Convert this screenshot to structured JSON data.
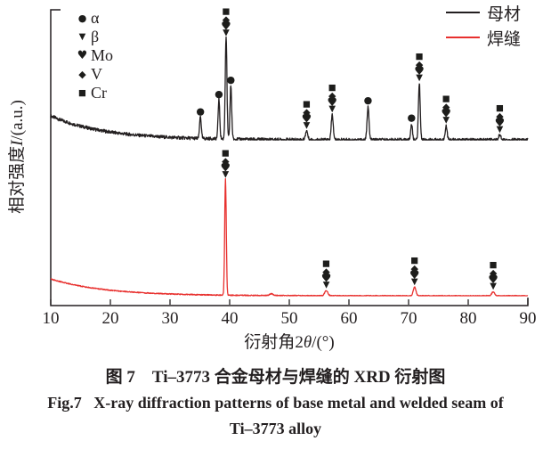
{
  "axes": {
    "xlabel": "衍射角2θ/(°)",
    "ylabel": "相对强度I/(a.u.)"
  },
  "legend": {
    "items": [
      {
        "label": "母材",
        "color": "#231f20"
      },
      {
        "label": "焊缝",
        "color": "#e8302e"
      }
    ]
  },
  "phase_markers": [
    {
      "glyph": "●",
      "label": "α"
    },
    {
      "glyph": "▼",
      "label": "β"
    },
    {
      "glyph": "♥",
      "label": "Mo"
    },
    {
      "glyph": "◆",
      "label": "V"
    },
    {
      "glyph": "■",
      "label": "Cr"
    }
  ],
  "caption": {
    "cn": "图 7　Ti–3773 合金母材与焊缝的 XRD 衍射图",
    "en_line1": "Fig.7   X-ray diffraction patterns of base metal and welded seam of",
    "en_line2": "Ti–3773 alloy"
  },
  "chart_data": {
    "type": "line",
    "title": "XRD patterns of base metal and welded seam of Ti–3773 alloy",
    "xlabel": "衍射角2θ/(°)",
    "ylabel": "相对强度I/(a.u.)",
    "x_axis": {
      "min": 10,
      "max": 90,
      "ticks": [
        10,
        20,
        30,
        40,
        50,
        60,
        70,
        80,
        90
      ]
    },
    "y_axis": {
      "unit": "a.u.",
      "note": "relative intensity, arbitrary units, no ticks"
    },
    "axis_color": "#231f20",
    "grid": false,
    "legend_position": "top-right",
    "stack_glyphs": [
      {
        "glyph": "▼",
        "dy": -6
      },
      {
        "glyph": "♥",
        "dy": -13
      },
      {
        "glyph": "◆",
        "dy": -21
      },
      {
        "glyph": "■",
        "dy": -30
      }
    ],
    "series": [
      {
        "name": "母材 (base metal)",
        "color": "#231f20",
        "baseline_frac": 0.56,
        "scale_frac": 0.343,
        "left_tail": 0.237,
        "tail_decay": 9,
        "noise": 0.016,
        "peaks": [
          {
            "two_theta": 35.1,
            "intensity": 0.22,
            "width": 0.14,
            "marker": "circle",
            "phase": "α"
          },
          {
            "two_theta": 38.2,
            "intensity": 0.39,
            "width": 0.14,
            "marker": "circle",
            "phase": "α"
          },
          {
            "two_theta": 39.4,
            "intensity": 1.0,
            "width": 0.14,
            "marker": "stack",
            "phase": "β/Mo/V/Cr"
          },
          {
            "two_theta": 40.2,
            "intensity": 0.53,
            "width": 0.14,
            "marker": "circle",
            "phase": "α"
          },
          {
            "two_theta": 52.9,
            "intensity": 0.09,
            "width": 0.18,
            "marker": "stack",
            "phase": "β/Mo/V/Cr"
          },
          {
            "two_theta": 57.2,
            "intensity": 0.25,
            "width": 0.16,
            "marker": "stack",
            "phase": "β/Mo/V/Cr"
          },
          {
            "two_theta": 63.2,
            "intensity": 0.33,
            "width": 0.16,
            "marker": "circle",
            "phase": "α"
          },
          {
            "two_theta": 70.5,
            "intensity": 0.16,
            "width": 0.14,
            "marker": "circle",
            "phase": "α"
          },
          {
            "two_theta": 71.8,
            "intensity": 0.56,
            "width": 0.15,
            "marker": "stack",
            "phase": "β/Mo/V/Cr"
          },
          {
            "two_theta": 76.3,
            "intensity": 0.14,
            "width": 0.16,
            "marker": "stack",
            "phase": "β/Mo/V/Cr"
          },
          {
            "two_theta": 85.3,
            "intensity": 0.05,
            "width": 0.2,
            "marker": "stack",
            "phase": "β/Mo/V/Cr"
          }
        ]
      },
      {
        "name": "焊缝 (welded seam)",
        "color": "#e8302e",
        "baseline_frac": 0.033,
        "scale_frac": 0.392,
        "left_tail": 0.146,
        "tail_decay": 9,
        "noise": 0.004,
        "peaks": [
          {
            "two_theta": 39.3,
            "intensity": 1.0,
            "width": 0.13,
            "marker": "stack",
            "phase": "β/Mo/V/Cr"
          },
          {
            "two_theta": 47.0,
            "intensity": 0.015,
            "width": 0.3,
            "marker": "none",
            "phase": ""
          },
          {
            "two_theta": 56.2,
            "intensity": 0.045,
            "width": 0.25,
            "marker": "stack",
            "phase": "β/Mo/V/Cr"
          },
          {
            "two_theta": 71.0,
            "intensity": 0.075,
            "width": 0.22,
            "marker": "stack",
            "phase": "β/Mo/V/Cr"
          },
          {
            "two_theta": 84.2,
            "intensity": 0.035,
            "width": 0.25,
            "marker": "stack",
            "phase": "β/Mo/V/Cr"
          }
        ]
      }
    ]
  }
}
